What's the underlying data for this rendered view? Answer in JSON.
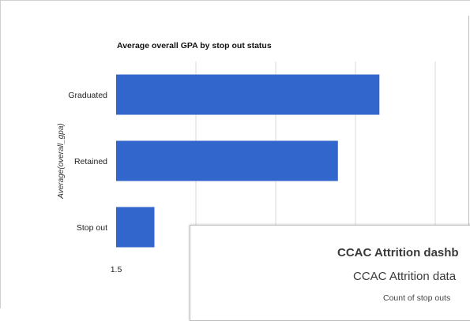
{
  "chart_data": {
    "type": "bar",
    "orientation": "horizontal",
    "title": "Average overall GPA by stop out status",
    "ylabel": "Average(overall_gpa)",
    "categories": [
      "Graduated",
      "Retained",
      "Stop out"
    ],
    "values": [
      3.15,
      2.89,
      1.74
    ],
    "xlim": [
      1.5,
      3.5
    ],
    "x_ticks_visible": [
      "1.5"
    ],
    "grid": true,
    "bar_color": "#3366cc"
  },
  "overlay": {
    "title": "CCAC Attrition dashb",
    "subtitle": "CCAC Attrition data",
    "caption": "Count of stop outs"
  }
}
